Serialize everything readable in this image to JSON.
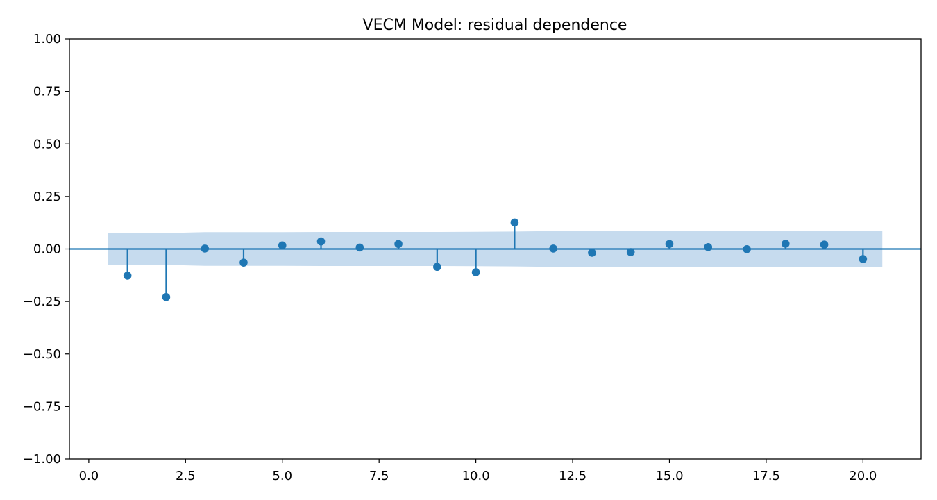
{
  "chart_data": {
    "type": "stem",
    "title": "VECM Model: residual dependence",
    "xlabel": "",
    "ylabel": "",
    "xlim": [
      -0.5,
      21.5
    ],
    "ylim": [
      -1.0,
      1.0
    ],
    "x_ticks": [
      0.0,
      2.5,
      5.0,
      7.5,
      10.0,
      12.5,
      15.0,
      17.5,
      20.0
    ],
    "x_tick_labels": [
      "0.0",
      "2.5",
      "5.0",
      "7.5",
      "10.0",
      "12.5",
      "15.0",
      "17.5",
      "20.0"
    ],
    "y_ticks": [
      1.0,
      0.75,
      0.5,
      0.25,
      0.0,
      -0.25,
      -0.5,
      -0.75,
      -1.0
    ],
    "y_tick_labels": [
      "1.00",
      "0.75",
      "0.50",
      "0.25",
      "0.00",
      "−0.25",
      "−0.50",
      "−0.75",
      "−1.00"
    ],
    "grid": false,
    "colors": {
      "series": "#1f77b4",
      "band": "#c6dbee"
    },
    "lags": [
      1,
      2,
      3,
      4,
      5,
      6,
      7,
      8,
      9,
      10,
      11,
      12,
      13,
      14,
      15,
      16,
      17,
      18,
      19,
      20
    ],
    "values": [
      -0.127,
      -0.229,
      0.002,
      -0.065,
      0.017,
      0.036,
      0.007,
      0.024,
      -0.085,
      -0.111,
      0.126,
      0.002,
      -0.018,
      -0.015,
      0.024,
      0.009,
      -0.001,
      0.025,
      0.021,
      -0.048
    ],
    "confidence_band": {
      "x": [
        0.5,
        1,
        2,
        3,
        4,
        5,
        6,
        7,
        8,
        9,
        10,
        11,
        12,
        13,
        14,
        15,
        16,
        17,
        18,
        19,
        20,
        20.5
      ],
      "upper": [
        0.075,
        0.075,
        0.076,
        0.08,
        0.08,
        0.08,
        0.081,
        0.081,
        0.081,
        0.081,
        0.082,
        0.083,
        0.085,
        0.085,
        0.085,
        0.085,
        0.085,
        0.085,
        0.085,
        0.085,
        0.085,
        0.085
      ],
      "lower": [
        -0.075,
        -0.075,
        -0.076,
        -0.08,
        -0.08,
        -0.08,
        -0.081,
        -0.081,
        -0.081,
        -0.081,
        -0.082,
        -0.083,
        -0.085,
        -0.085,
        -0.085,
        -0.085,
        -0.085,
        -0.085,
        -0.085,
        -0.085,
        -0.085,
        -0.085
      ]
    }
  }
}
